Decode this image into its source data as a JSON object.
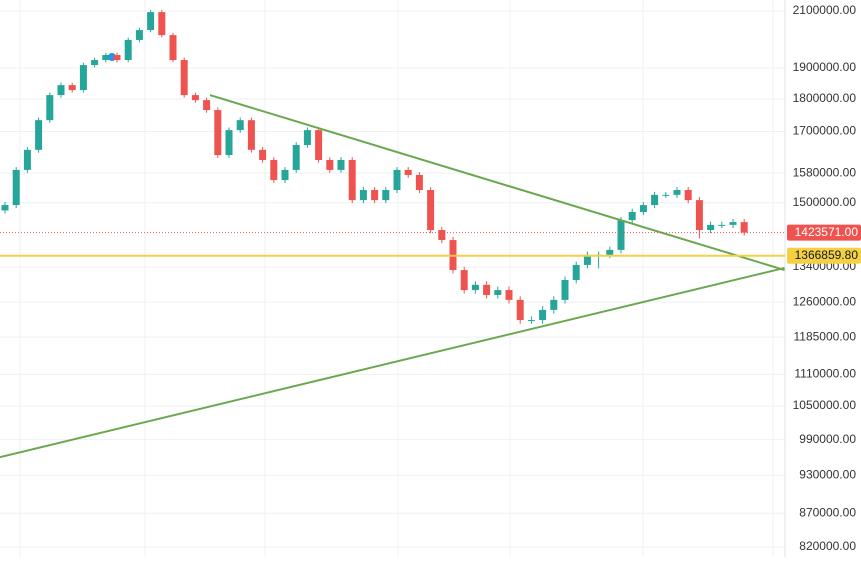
{
  "chart_data": {
    "type": "candlestick",
    "log_scale": true,
    "grid": true,
    "up_color": "#26a69a",
    "down_color": "#ef5350",
    "ylim": [
      805700,
      2141000
    ],
    "yticks": [
      {
        "value": 2100000,
        "label": "2100000.00"
      },
      {
        "value": 1900000,
        "label": "1900000.00"
      },
      {
        "value": 1800000,
        "label": "1800000.00"
      },
      {
        "value": 1700000,
        "label": "1700000.00"
      },
      {
        "value": 1580000,
        "label": "1580000.00"
      },
      {
        "value": 1500000,
        "label": "1500000.00"
      },
      {
        "value": 1340000,
        "label": "1340000.00"
      },
      {
        "value": 1260000,
        "label": "1260000.00"
      },
      {
        "value": 1185000,
        "label": "1185000.00"
      },
      {
        "value": 1110000,
        "label": "1110000.00"
      },
      {
        "value": 1050000,
        "label": "1050000.00"
      },
      {
        "value": 990000,
        "label": "990000.00"
      },
      {
        "value": 930000,
        "label": "930000.00"
      },
      {
        "value": 870000,
        "label": "870000.00"
      },
      {
        "value": 820000,
        "label": "820000.00"
      }
    ],
    "open": [
      1480000,
      1494000,
      1589000,
      1646000,
      1734000,
      1812000,
      1844000,
      1828000,
      1910000,
      1927000,
      1944000,
      1927000,
      1996000,
      2031000,
      2096000,
      2013000,
      1927000,
      1812000,
      1796000,
      1765000,
      1631000,
      1704000,
      1734000,
      1646000,
      1617000,
      1561000,
      1589000,
      1660000,
      1704000,
      1617000,
      1589000,
      1617000,
      1507000,
      1534000,
      1507000,
      1534000,
      1589000,
      1575000,
      1534000,
      1430000,
      1405000,
      1333000,
      1287000,
      1299000,
      1276000,
      1287000,
      1265000,
      1221000,
      1221000,
      1243000,
      1265000,
      1310000,
      1345000,
      1369000,
      1369000,
      1381000,
      1455000,
      1476000,
      1494000,
      1521000,
      1521000,
      1534000,
      1507000,
      1430000,
      1443000,
      1443000,
      1450000
    ],
    "high": [
      1502000,
      1597000,
      1654000,
      1742000,
      1820000,
      1852000,
      1852000,
      1918000,
      1935000,
      1952000,
      1952000,
      2004000,
      2039000,
      2104000,
      2104000,
      2021000,
      1935000,
      1820000,
      1804000,
      1773000,
      1712000,
      1742000,
      1742000,
      1654000,
      1625000,
      1597000,
      1668000,
      1712000,
      1712000,
      1625000,
      1625000,
      1625000,
      1542000,
      1542000,
      1542000,
      1597000,
      1597000,
      1583000,
      1542000,
      1438000,
      1413000,
      1341000,
      1307000,
      1307000,
      1295000,
      1295000,
      1273000,
      1229000,
      1251000,
      1273000,
      1318000,
      1353000,
      1377000,
      1377000,
      1389000,
      1463000,
      1484000,
      1502000,
      1529000,
      1529000,
      1542000,
      1542000,
      1515000,
      1451000,
      1451000,
      1458000,
      1458000
    ],
    "low": [
      1472000,
      1486000,
      1581000,
      1638000,
      1726000,
      1804000,
      1820000,
      1820000,
      1902000,
      1919000,
      1919000,
      1919000,
      1988000,
      2023000,
      2005000,
      1919000,
      1804000,
      1788000,
      1757000,
      1623000,
      1623000,
      1696000,
      1638000,
      1609000,
      1553000,
      1553000,
      1581000,
      1652000,
      1609000,
      1581000,
      1581000,
      1499000,
      1499000,
      1499000,
      1499000,
      1526000,
      1567000,
      1526000,
      1422000,
      1397000,
      1325000,
      1279000,
      1279000,
      1268000,
      1268000,
      1257000,
      1213000,
      1213000,
      1213000,
      1235000,
      1257000,
      1302000,
      1337000,
      1337000,
      1361000,
      1373000,
      1447000,
      1468000,
      1486000,
      1513000,
      1513000,
      1499000,
      1409000,
      1422000,
      1435000,
      1435000,
      1416000
    ],
    "close": [
      1494000,
      1589000,
      1646000,
      1734000,
      1812000,
      1844000,
      1828000,
      1910000,
      1927000,
      1944000,
      1927000,
      1996000,
      2031000,
      2096000,
      2013000,
      1927000,
      1812000,
      1796000,
      1765000,
      1631000,
      1704000,
      1734000,
      1646000,
      1617000,
      1561000,
      1589000,
      1660000,
      1704000,
      1617000,
      1589000,
      1617000,
      1507000,
      1534000,
      1507000,
      1534000,
      1589000,
      1575000,
      1534000,
      1430000,
      1405000,
      1333000,
      1287000,
      1299000,
      1276000,
      1287000,
      1265000,
      1221000,
      1221000,
      1243000,
      1265000,
      1310000,
      1345000,
      1369000,
      1369000,
      1381000,
      1455000,
      1476000,
      1494000,
      1521000,
      1521000,
      1534000,
      1507000,
      1430000,
      1443000,
      1443000,
      1450000,
      1423571
    ],
    "last_price": {
      "value": 1423571,
      "label": "1423571.00",
      "color": "#ef5350"
    },
    "price_line": {
      "value": 1366859.8,
      "label": "1366859.80",
      "color": "#f5d142"
    },
    "trendlines": [
      {
        "color": "#6aa84f",
        "start": {
          "bar": 18.3,
          "price": 1812000
        },
        "end": {
          "bar": 69.6,
          "price": 1333000
        }
      },
      {
        "color": "#6aa84f",
        "start": {
          "bar": -0.45,
          "price": 960000
        },
        "end": {
          "bar": 69.6,
          "price": 1338000
        }
      }
    ]
  }
}
